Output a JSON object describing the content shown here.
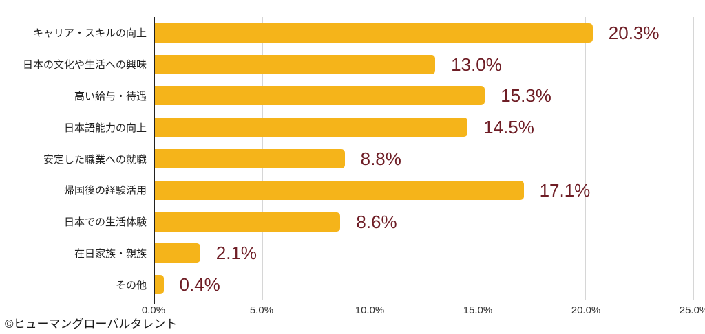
{
  "chart_data": {
    "type": "bar",
    "orientation": "horizontal",
    "title": "",
    "xlabel": "",
    "ylabel": "",
    "categories": [
      "キャリア・スキルの向上",
      "日本の文化や生活への興味",
      "高い給与・待遇",
      "日本語能力の向上",
      "安定した職業への就職",
      "帰国後の経験活用",
      "日本での生活体験",
      "在日家族・親族",
      "その他"
    ],
    "values": [
      20.3,
      13.0,
      15.3,
      14.5,
      8.8,
      17.1,
      8.6,
      2.1,
      0.4
    ],
    "value_labels": [
      "20.3%",
      "13.0%",
      "15.3%",
      "14.5%",
      "8.8%",
      "17.1%",
      "8.6%",
      "2.1%",
      "0.4%"
    ],
    "xlim": [
      0,
      25
    ],
    "x_ticks": [
      "0.0%",
      "5.0%",
      "10.0%",
      "15.0%",
      "20.0%",
      "25.0%"
    ],
    "x_tick_values": [
      0,
      5,
      10,
      15,
      20,
      25
    ],
    "grid": true,
    "legend": false,
    "colors": {
      "bar": "#F5B41A",
      "value_label": "#6E1D25",
      "axis_line": "#212121",
      "gridline": "#d6d6d6",
      "category_label": "#212121",
      "tick_label": "#333333"
    }
  },
  "footer": {
    "copyright": "©ヒューマングローバルタレント"
  }
}
